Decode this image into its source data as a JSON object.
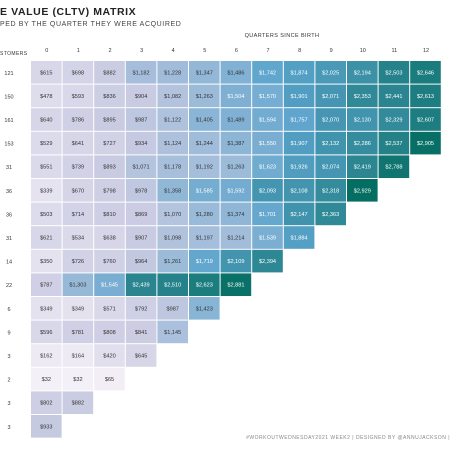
{
  "header": {
    "title": "E VALUE (CLTV) MATRIX",
    "subtitle": "PED BY THE QUARTER THEY WERE ACQUIRED"
  },
  "footer": {
    "credit": "#WORKOUTWEDNESDAY2021 WEEK2 | DESIGNED BY @ANNUJACKSON |"
  },
  "colors": {
    "low": "#f6f1f8",
    "mid_low": "#c9cbe2",
    "mid": "#5aa3cc",
    "high": "#006b5c",
    "text_dark": "#333333",
    "text_light": "#ffffff"
  },
  "chart_data": {
    "type": "heatmap",
    "x_title": "QUARTERS SINCE BIRTH",
    "row_header": "STOMERS",
    "columns": [
      "0",
      "1",
      "2",
      "3",
      "4",
      "5",
      "6",
      "7",
      "8",
      "9",
      "10",
      "11",
      "12"
    ],
    "row_labels": [
      "121",
      "150",
      "161",
      "153",
      "31",
      "36",
      "36",
      "31",
      "14",
      "22",
      "6",
      "9",
      "3",
      "2",
      "3",
      "3"
    ],
    "values": [
      [
        615,
        698,
        882,
        1182,
        1228,
        1347,
        1486,
        1742,
        1874,
        2025,
        2194,
        2503,
        2646
      ],
      [
        478,
        593,
        836,
        904,
        1082,
        1263,
        1504,
        1570,
        1901,
        2071,
        2353,
        2441,
        2613
      ],
      [
        640,
        786,
        895,
        987,
        1122,
        1405,
        1489,
        1594,
        1757,
        2070,
        2130,
        2329,
        2607
      ],
      [
        529,
        641,
        727,
        934,
        1124,
        1244,
        1387,
        1550,
        1907,
        2132,
        2286,
        2537,
        2905
      ],
      [
        551,
        739,
        893,
        1071,
        1178,
        1192,
        1263,
        1623,
        1926,
        2074,
        2419,
        2788
      ],
      [
        339,
        670,
        798,
        978,
        1358,
        1585,
        1592,
        2093,
        2108,
        2318,
        2929
      ],
      [
        503,
        714,
        810,
        869,
        1070,
        1280,
        1374,
        1701,
        2147,
        2363
      ],
      [
        621,
        534,
        638,
        907,
        1098,
        1197,
        1214,
        1539,
        1884
      ],
      [
        350,
        726,
        760,
        964,
        1261,
        1719,
        2109,
        2394
      ],
      [
        787,
        1303,
        1545,
        2439,
        2510,
        2623,
        2881
      ],
      [
        349,
        349,
        571,
        792,
        987,
        1423
      ],
      [
        596,
        781,
        808,
        841,
        1145
      ],
      [
        162,
        164,
        420,
        645
      ],
      [
        32,
        32,
        65
      ],
      [
        802,
        882
      ],
      [
        933
      ]
    ],
    "value_prefix": "$",
    "color_range": [
      0,
      3000
    ]
  }
}
